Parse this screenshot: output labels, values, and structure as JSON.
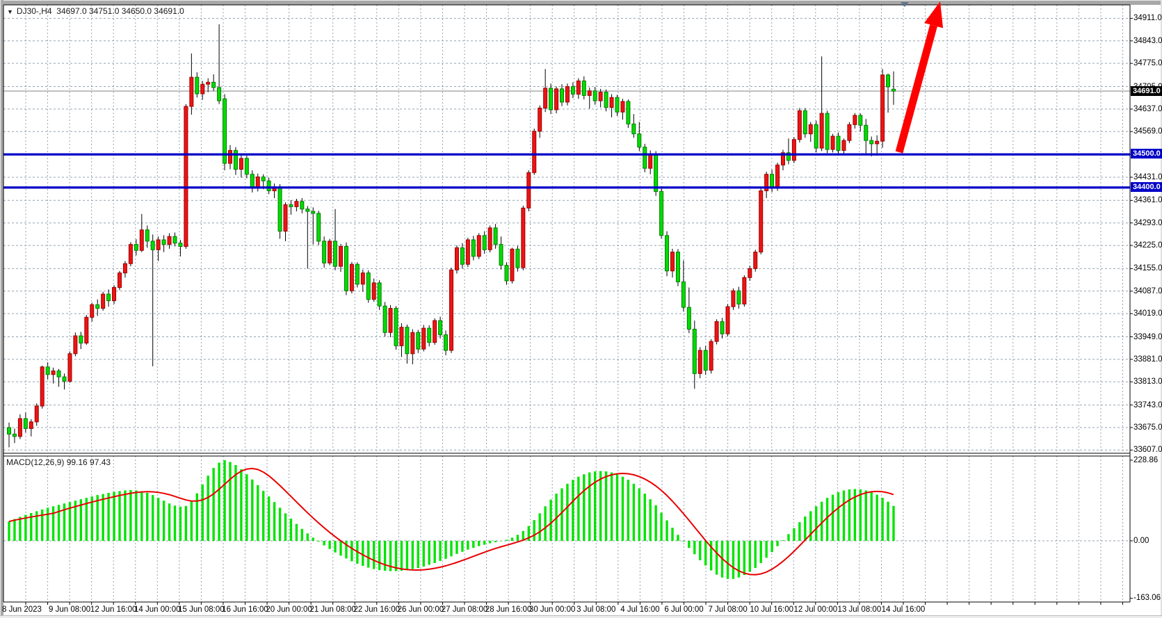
{
  "window": {
    "dropdown_icon": "chart-symbol-dropdown",
    "title": "DJ30-,H4  34697.0 34751.0 34650.0 34691.0",
    "symbol_period": "DJ30-,H4",
    "last_bar": {
      "open": "34697.0",
      "high": "34751.0",
      "low": "34650.0",
      "close": "34691.0"
    }
  },
  "price_axis": {
    "ticks": [
      34911.0,
      34843.0,
      34775.0,
      34705.0,
      34637.0,
      34569.0,
      34500.0,
      34431.0,
      34361.0,
      34293.0,
      34225.0,
      34155.0,
      34087.0,
      34019.0,
      33949.0,
      33881.0,
      33813.0,
      33743.0,
      33675.0,
      33607.0
    ],
    "current_price_tag": "34691.0",
    "line_tags": [
      {
        "label": "34500.0",
        "price": 34500,
        "color": "#0000c8"
      },
      {
        "label": "34400.0",
        "price": 34400,
        "color": "#0000c8"
      }
    ]
  },
  "time_axis": {
    "labels": [
      "8 Jun 2023",
      "9 Jun 08:00",
      "12 Jun 16:00",
      "14 Jun 00:00",
      "15 Jun 08:00",
      "16 Jun 16:00",
      "20 Jun 00:00",
      "21 Jun 08:00",
      "22 Jun 16:00",
      "26 Jun 00:00",
      "27 Jun 08:00",
      "28 Jun 16:00",
      "30 Jun 00:00",
      "3 Jul 08:00",
      "4 Jul 16:00",
      "6 Jul 00:00",
      "7 Jul 08:00",
      "10 Jul 16:00",
      "12 Jul 00:00",
      "13 Jul 08:00",
      "14 Jul 16:00"
    ]
  },
  "macd_panel": {
    "label": "MACD(12,26,9) 99.16 97.43",
    "indicator": "MACD(12,26,9)",
    "main_value": "99.16",
    "signal_value": "97.43",
    "axis_ticks": [
      {
        "label": "228.86",
        "value": 228.86
      },
      {
        "label": "0.00",
        "value": 0.0
      },
      {
        "label": "-163.06",
        "value": -163.06
      }
    ]
  },
  "annotations": {
    "arrow": {
      "type": "trend-arrow-up",
      "color": "#ff0000",
      "from_price": 34500,
      "note": "points up past chart top"
    },
    "horizontal_lines": [
      34500.0,
      34400.0
    ],
    "current_price_line": 34691.0
  },
  "colors": {
    "bull_candle": "#ee1414",
    "bull_border": "#9a0000",
    "bear_candle": "#00dc00",
    "bear_border": "#007c00",
    "wick": "#000000",
    "grid": "#94a2b0",
    "hline": "#0000c8",
    "macd_hist": "#00e400",
    "macd_signal": "#e80000",
    "current_price_line": "#808080",
    "arrow": "#ff0000"
  },
  "chart_data": {
    "type": "candlestick+macd",
    "symbol": "DJ30-",
    "timeframe": "H4",
    "title": "DJ30-,H4  34697.0 34751.0 34650.0 34691.0",
    "price_range": [
      33607.0,
      34911.0
    ],
    "macd_range": [
      -163.06,
      228.86
    ],
    "grid": "dashed",
    "note": "in this color scheme red bodies = bullish, green bodies = bearish",
    "ohlc": [
      [
        33675,
        33690,
        33615,
        33655
      ],
      [
        33655,
        33672,
        33628,
        33648
      ],
      [
        33648,
        33715,
        33640,
        33702
      ],
      [
        33702,
        33720,
        33660,
        33672
      ],
      [
        33672,
        33700,
        33648,
        33692
      ],
      [
        33692,
        33748,
        33680,
        33740
      ],
      [
        33740,
        33862,
        33732,
        33858
      ],
      [
        33858,
        33872,
        33820,
        33835
      ],
      [
        33835,
        33856,
        33808,
        33846
      ],
      [
        33846,
        33852,
        33798,
        33828
      ],
      [
        33828,
        33838,
        33790,
        33815
      ],
      [
        33815,
        33905,
        33810,
        33898
      ],
      [
        33898,
        33962,
        33890,
        33952
      ],
      [
        33952,
        33964,
        33912,
        33930
      ],
      [
        33930,
        34015,
        33925,
        34008
      ],
      [
        34008,
        34052,
        33995,
        34046
      ],
      [
        34046,
        34062,
        34012,
        34035
      ],
      [
        34035,
        34085,
        34028,
        34078
      ],
      [
        34078,
        34092,
        34040,
        34058
      ],
      [
        34058,
        34105,
        34048,
        34098
      ],
      [
        34098,
        34148,
        34090,
        34142
      ],
      [
        34142,
        34178,
        34128,
        34170
      ],
      [
        34170,
        34235,
        34162,
        34228
      ],
      [
        34228,
        34244,
        34195,
        34210
      ],
      [
        34210,
        34320,
        34205,
        34272
      ],
      [
        34272,
        34285,
        34218,
        34238
      ],
      [
        34238,
        34258,
        33860,
        34212
      ],
      [
        34212,
        34252,
        34178,
        34242
      ],
      [
        34242,
        34256,
        34205,
        34228
      ],
      [
        34228,
        34262,
        34215,
        34252
      ],
      [
        34252,
        34264,
        34222,
        34232
      ],
      [
        34232,
        34242,
        34192,
        34222
      ],
      [
        34222,
        34652,
        34215,
        34645
      ],
      [
        34645,
        34805,
        34620,
        34733
      ],
      [
        34733,
        34748,
        34672,
        34683
      ],
      [
        34683,
        34722,
        34665,
        34712
      ],
      [
        34712,
        34730,
        34688,
        34718
      ],
      [
        34718,
        34742,
        34692,
        34702
      ],
      [
        34702,
        34893,
        34652,
        34662
      ],
      [
        34668,
        34682,
        34452,
        34473
      ],
      [
        34473,
        34528,
        34455,
        34512
      ],
      [
        34512,
        34522,
        34438,
        34455
      ],
      [
        34455,
        34498,
        34430,
        34488
      ],
      [
        34488,
        34496,
        34428,
        34440
      ],
      [
        34440,
        34452,
        34385,
        34398
      ],
      [
        34398,
        34442,
        34388,
        34432
      ],
      [
        34432,
        34440,
        34395,
        34420
      ],
      [
        34420,
        34430,
        34380,
        34390
      ],
      [
        34390,
        34412,
        34368,
        34402
      ],
      [
        34402,
        34410,
        34245,
        34268
      ],
      [
        34268,
        34355,
        34238,
        34348
      ],
      [
        34348,
        34362,
        34318,
        34342
      ],
      [
        34342,
        34366,
        34328,
        34358
      ],
      [
        34358,
        34368,
        34322,
        34335
      ],
      [
        34335,
        34344,
        34155,
        34328
      ],
      [
        34328,
        34340,
        34228,
        34322
      ],
      [
        34322,
        34330,
        34226,
        34238
      ],
      [
        34238,
        34252,
        34158,
        34172
      ],
      [
        34172,
        34245,
        34165,
        34238
      ],
      [
        34238,
        34335,
        34150,
        34162
      ],
      [
        34162,
        34230,
        34145,
        34222
      ],
      [
        34222,
        34234,
        34075,
        34088
      ],
      [
        34088,
        34175,
        34080,
        34168
      ],
      [
        34168,
        34174,
        34098,
        34108
      ],
      [
        34108,
        34152,
        34085,
        34142
      ],
      [
        34142,
        34150,
        34052,
        34062
      ],
      [
        34062,
        34125,
        34055,
        34112
      ],
      [
        34112,
        34120,
        34030,
        34042
      ],
      [
        34042,
        34054,
        33950,
        33962
      ],
      [
        33962,
        34045,
        33948,
        34035
      ],
      [
        34035,
        34042,
        33910,
        33922
      ],
      [
        33922,
        33990,
        33888,
        33978
      ],
      [
        33978,
        33986,
        33868,
        33898
      ],
      [
        33898,
        33972,
        33866,
        33962
      ],
      [
        33962,
        33970,
        33900,
        33912
      ],
      [
        33912,
        33985,
        33905,
        33975
      ],
      [
        33975,
        33984,
        33920,
        33932
      ],
      [
        33932,
        34005,
        33925,
        33998
      ],
      [
        33998,
        34010,
        33944,
        33955
      ],
      [
        33955,
        33968,
        33893,
        33908
      ],
      [
        33908,
        34158,
        33900,
        34151
      ],
      [
        34151,
        34225,
        34140,
        34218
      ],
      [
        34218,
        34232,
        34155,
        34168
      ],
      [
        34168,
        34248,
        34160,
        34242
      ],
      [
        34242,
        34254,
        34180,
        34192
      ],
      [
        34192,
        34262,
        34184,
        34255
      ],
      [
        34255,
        34268,
        34200,
        34212
      ],
      [
        34212,
        34285,
        34204,
        34278
      ],
      [
        34278,
        34290,
        34215,
        34228
      ],
      [
        34228,
        34252,
        34152,
        34165
      ],
      [
        34165,
        34174,
        34106,
        34118
      ],
      [
        34118,
        34218,
        34110,
        34214
      ],
      [
        34214,
        34224,
        34146,
        34158
      ],
      [
        34158,
        34345,
        34150,
        34338
      ],
      [
        34338,
        34452,
        34328,
        34445
      ],
      [
        34445,
        34578,
        34438,
        34570
      ],
      [
        34570,
        34648,
        34550,
        34640
      ],
      [
        34640,
        34758,
        34628,
        34700
      ],
      [
        34700,
        34714,
        34622,
        34635
      ],
      [
        34635,
        34705,
        34624,
        34698
      ],
      [
        34698,
        34712,
        34646,
        34658
      ],
      [
        34658,
        34714,
        34648,
        34705
      ],
      [
        34705,
        34718,
        34670,
        34682
      ],
      [
        34682,
        34730,
        34668,
        34722
      ],
      [
        34722,
        34736,
        34666,
        34678
      ],
      [
        34678,
        34702,
        34638,
        34692
      ],
      [
        34692,
        34704,
        34650,
        34662
      ],
      [
        34662,
        34698,
        34642,
        34688
      ],
      [
        34688,
        34696,
        34630,
        34642
      ],
      [
        34642,
        34682,
        34612,
        34672
      ],
      [
        34672,
        34680,
        34616,
        34628
      ],
      [
        34628,
        34668,
        34605,
        34660
      ],
      [
        34660,
        34666,
        34580,
        34592
      ],
      [
        34592,
        34622,
        34550,
        34562
      ],
      [
        34562,
        34598,
        34510,
        34522
      ],
      [
        34522,
        34532,
        34446,
        34458
      ],
      [
        34458,
        34512,
        34440,
        34502
      ],
      [
        34502,
        34510,
        34375,
        34388
      ],
      [
        34388,
        34396,
        34246,
        34255
      ],
      [
        34255,
        34268,
        34132,
        34148
      ],
      [
        34148,
        34215,
        34128,
        34205
      ],
      [
        34205,
        34214,
        34102,
        34115
      ],
      [
        34115,
        34180,
        34026,
        34038
      ],
      [
        34038,
        34098,
        33960,
        33972
      ],
      [
        33972,
        33998,
        33792,
        33838
      ],
      [
        33838,
        33918,
        33824,
        33908
      ],
      [
        33908,
        33922,
        33834,
        33848
      ],
      [
        33848,
        33942,
        33838,
        33935
      ],
      [
        33935,
        34002,
        33926,
        33995
      ],
      [
        33995,
        34006,
        33944,
        33958
      ],
      [
        33958,
        34048,
        33950,
        34040
      ],
      [
        34040,
        34095,
        34030,
        34088
      ],
      [
        34088,
        34100,
        34034,
        34048
      ],
      [
        34048,
        34135,
        34040,
        34128
      ],
      [
        34128,
        34164,
        34118,
        34155
      ],
      [
        34155,
        34212,
        34146,
        34205
      ],
      [
        34205,
        34398,
        34198,
        34390
      ],
      [
        34390,
        34448,
        34368,
        34440
      ],
      [
        34440,
        34454,
        34386,
        34398
      ],
      [
        34398,
        34475,
        34390,
        34468
      ],
      [
        34468,
        34514,
        34452,
        34505
      ],
      [
        34505,
        34548,
        34470,
        34482
      ],
      [
        34482,
        34552,
        34474,
        34545
      ],
      [
        34545,
        34640,
        34536,
        34632
      ],
      [
        34632,
        34640,
        34550,
        34562
      ],
      [
        34562,
        34598,
        34538,
        34590
      ],
      [
        34590,
        34602,
        34506,
        34519
      ],
      [
        34519,
        34796,
        34510,
        34624
      ],
      [
        34624,
        34632,
        34504,
        34515
      ],
      [
        34515,
        34562,
        34506,
        34555
      ],
      [
        34555,
        34566,
        34500,
        34512
      ],
      [
        34512,
        34548,
        34502,
        34542
      ],
      [
        34542,
        34598,
        34534,
        34590
      ],
      [
        34590,
        34625,
        34578,
        34618
      ],
      [
        34618,
        34624,
        34570,
        34588
      ],
      [
        34588,
        34607,
        34497,
        34542
      ],
      [
        34542,
        34554,
        34494,
        34532
      ],
      [
        34532,
        34558,
        34496,
        34540
      ],
      [
        34540,
        34758,
        34520,
        34740
      ],
      [
        34740,
        34744,
        34626,
        34704
      ],
      [
        34697,
        34751,
        34650,
        34691
      ]
    ],
    "macd_main": [
      55,
      62,
      68,
      74,
      79,
      84,
      89,
      94,
      98,
      102,
      106,
      110,
      114,
      118,
      122,
      126,
      130,
      133,
      136,
      139,
      141,
      143,
      144,
      143,
      140,
      136,
      130,
      122,
      114,
      106,
      100,
      97,
      99,
      112,
      135,
      160,
      185,
      207,
      222,
      228.86,
      224,
      215,
      203,
      189,
      174,
      158,
      142,
      126,
      110,
      94,
      78,
      63,
      48,
      34,
      21,
      9,
      -2,
      -13,
      -23,
      -33,
      -42,
      -50,
      -58,
      -65,
      -71,
      -76,
      -80,
      -83,
      -85,
      -86,
      -86,
      -85,
      -83,
      -80,
      -77,
      -73,
      -68,
      -63,
      -57,
      -51,
      -44,
      -37,
      -31,
      -25,
      -20,
      -15,
      -11,
      -7,
      -4,
      -1,
      3,
      9,
      17,
      28,
      42,
      59,
      78,
      98,
      117,
      134,
      149,
      162,
      173,
      182,
      189,
      194,
      197,
      198,
      197,
      194,
      189,
      182,
      173,
      162,
      149,
      134,
      118,
      101,
      80,
      58,
      37,
      17,
      -2,
      -20,
      -38,
      -55,
      -70,
      -84,
      -96,
      -104,
      -108,
      -108,
      -104,
      -97,
      -88,
      -77,
      -63,
      -48,
      -32,
      -15,
      2,
      19,
      36,
      53,
      69,
      84,
      98,
      111,
      122,
      131,
      138,
      143,
      146,
      147,
      146,
      143,
      138,
      131,
      122,
      111,
      99.16
    ]
  }
}
